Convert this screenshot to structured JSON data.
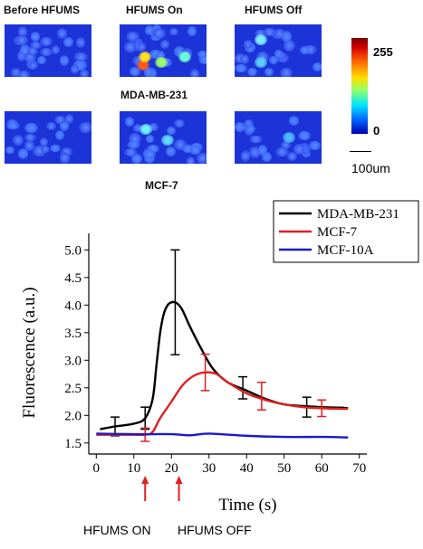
{
  "figure": {
    "col_labels": [
      "Before HFUMS",
      "HFUMS On",
      "HFUMS Off"
    ],
    "row_labels": [
      "MDA-MB-231",
      "MCF-7"
    ],
    "colorbar": {
      "max_label": "255",
      "min_label": "0"
    },
    "scale_bar_label": "100um",
    "annotations": {
      "on_label": "HFUMS ON",
      "off_label": "HFUMS OFF"
    }
  },
  "chart_data": {
    "type": "line",
    "xlabel": "Time (s)",
    "ylabel": "Fluorescence (a.u.)",
    "xlim": [
      -2,
      72
    ],
    "ylim": [
      1.3,
      5.3
    ],
    "xticks": [
      0,
      10,
      20,
      30,
      40,
      50,
      60,
      70
    ],
    "yticks": [
      1.5,
      2.0,
      2.5,
      3.0,
      3.5,
      4.0,
      4.5,
      5.0
    ],
    "legend_position": "top-right",
    "series": [
      {
        "name": "MDA-MB-231",
        "color": "#000000",
        "x": [
          1,
          5,
          10,
          13,
          15,
          16,
          17,
          18,
          19,
          20,
          21,
          22,
          23,
          25,
          28,
          31,
          35,
          40,
          45,
          50,
          55,
          60,
          65,
          67
        ],
        "y": [
          1.75,
          1.8,
          1.85,
          1.95,
          2.3,
          2.9,
          3.5,
          3.85,
          4.0,
          4.05,
          4.05,
          4.0,
          3.9,
          3.6,
          3.2,
          2.85,
          2.6,
          2.45,
          2.3,
          2.2,
          2.17,
          2.15,
          2.14,
          2.13
        ],
        "error_bars": [
          {
            "x": 5,
            "y": 1.8,
            "err": 0.17
          },
          {
            "x": 13,
            "y": 1.95,
            "err": 0.2
          },
          {
            "x": 21,
            "y": 4.05,
            "err": 0.95
          },
          {
            "x": 39,
            "y": 2.5,
            "err": 0.2
          },
          {
            "x": 56,
            "y": 2.15,
            "err": 0.18
          }
        ]
      },
      {
        "name": "MCF-7",
        "color": "#e02020",
        "x": [
          0,
          5,
          10,
          13,
          15,
          17,
          20,
          23,
          26,
          29,
          32,
          35,
          40,
          45,
          50,
          55,
          60,
          65,
          67
        ],
        "y": [
          1.65,
          1.65,
          1.65,
          1.65,
          1.7,
          1.95,
          2.25,
          2.55,
          2.72,
          2.78,
          2.75,
          2.6,
          2.4,
          2.28,
          2.2,
          2.15,
          2.13,
          2.12,
          2.12
        ],
        "error_bars": [
          {
            "x": 13,
            "y": 1.65,
            "err": 0.12
          },
          {
            "x": 29,
            "y": 2.78,
            "err": 0.33
          },
          {
            "x": 44,
            "y": 2.35,
            "err": 0.25
          },
          {
            "x": 60,
            "y": 2.13,
            "err": 0.15
          }
        ]
      },
      {
        "name": "MCF-10A",
        "color": "#1a1acc",
        "x": [
          0,
          10,
          20,
          25,
          30,
          40,
          50,
          60,
          67
        ],
        "y": [
          1.67,
          1.66,
          1.66,
          1.64,
          1.67,
          1.63,
          1.61,
          1.61,
          1.6
        ],
        "error_bars": []
      }
    ],
    "markers": [
      {
        "x": 13,
        "label_key": "on_label"
      },
      {
        "x": 22,
        "label_key": "off_label"
      }
    ]
  }
}
